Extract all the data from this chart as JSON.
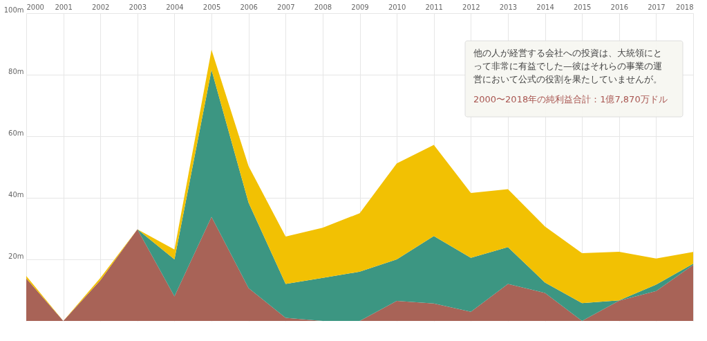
{
  "chart_data": {
    "type": "area",
    "stacked": true,
    "x": [
      2000,
      2001,
      2002,
      2003,
      2004,
      2005,
      2006,
      2007,
      2008,
      2009,
      2010,
      2011,
      2012,
      2013,
      2014,
      2015,
      2016,
      2017,
      2018
    ],
    "series": [
      {
        "color": "#a86357",
        "values": [
          13.8,
          0,
          13.2,
          29.8,
          8.0,
          33.8,
          10.7,
          1,
          0,
          0,
          6.5,
          5.7,
          3,
          12.0,
          9.1,
          0,
          6.6,
          9.7,
          18.2
        ]
      },
      {
        "color": "#3c9682",
        "values": [
          0,
          0,
          0,
          0,
          12.0,
          47.8,
          27.7,
          11,
          14,
          16,
          13.5,
          21.9,
          17.5,
          12.0,
          3.4,
          5.8,
          0.1,
          2.1,
          0.4
        ]
      },
      {
        "color": "#f2c103",
        "values": [
          0.8,
          0,
          0.8,
          0,
          3.2,
          6.5,
          11.9,
          15.4,
          16.3,
          19.0,
          31.2,
          29.6,
          21.1,
          18.8,
          18.2,
          16.2,
          15.8,
          8.5,
          3.8
        ]
      }
    ],
    "xlim": [
      2000,
      2018
    ],
    "xticks": [
      2000,
      2001,
      2002,
      2003,
      2004,
      2005,
      2006,
      2007,
      2008,
      2009,
      2010,
      2011,
      2012,
      2013,
      2014,
      2015,
      2016,
      2017,
      2018
    ],
    "ylim": [
      0,
      100
    ],
    "yticks": [
      {
        "value": 20,
        "label": "20m"
      },
      {
        "value": 40,
        "label": "40m"
      },
      {
        "value": 60,
        "label": "60m"
      },
      {
        "value": 80,
        "label": "80m"
      },
      {
        "value": 100,
        "label": "100m"
      }
    ],
    "grid": true,
    "annotations": [
      "他の人が経営する会社への投資は、大統領にとって非常に有益でした—彼はそれらの事業の運営において公式の役割を果たしていませんが。",
      "2000〜2018年の純利益合計：1億7,870万ドル"
    ]
  }
}
